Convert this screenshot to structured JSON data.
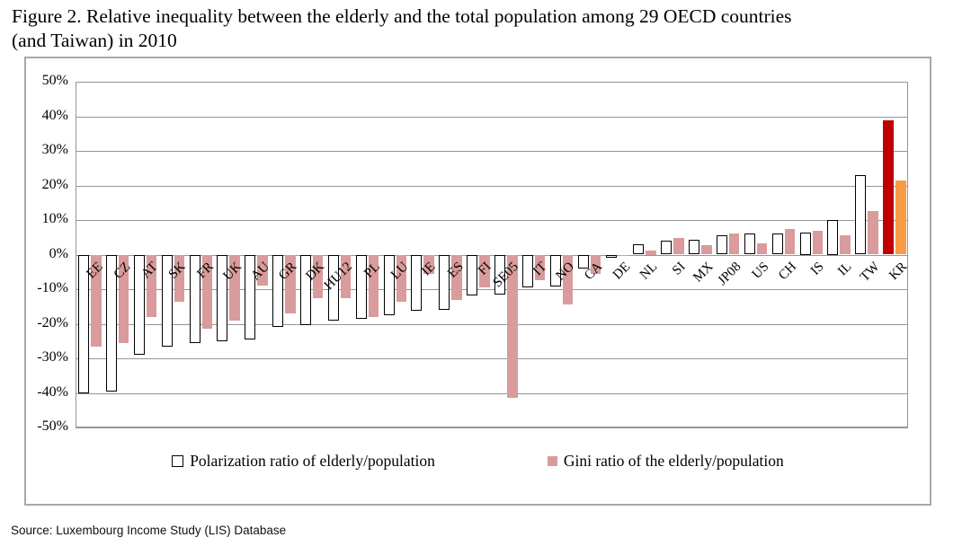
{
  "title_line1": "Figure 2. Relative inequality between the elderly and the total population among 29 OECD countries",
  "title_line2": "(and Taiwan) in 2010",
  "source": "Source: Luxembourg Income Study (LIS) Database",
  "chart_data": {
    "type": "bar",
    "categories": [
      "EE",
      "CZ",
      "AT",
      "SK",
      "FR",
      "UK",
      "AU",
      "GR",
      "DK",
      "HU12",
      "PL",
      "LU",
      "IE",
      "ES",
      "FI",
      "SE05",
      "IT",
      "NO",
      "CA",
      "DE",
      "NL",
      "SI",
      "MX",
      "JP08",
      "US",
      "CH",
      "IS",
      "IL",
      "TW",
      "KR"
    ],
    "series": [
      {
        "name": "Polarization ratio of elderly/population",
        "values": [
          -40,
          -39.5,
          -29,
          -26.5,
          -25.5,
          -25,
          -24.5,
          -21,
          -20.5,
          -19,
          -18.5,
          -17.5,
          -16.3,
          -16,
          -11.7,
          -11.5,
          -9.5,
          -9.3,
          -4,
          -1,
          3,
          4,
          4.4,
          5.7,
          6,
          6.2,
          6.5,
          10,
          23,
          38.8
        ]
      },
      {
        "name": "Gini ratio of the elderly/population",
        "values": [
          -26.5,
          -25.5,
          -18,
          -13.5,
          -21.5,
          -19,
          -9,
          -17,
          -12.5,
          -12.5,
          -18,
          -13.5,
          -5.5,
          -13,
          -9.5,
          -41.5,
          -7.5,
          -14.5,
          -5.5,
          -0.5,
          1.3,
          4.9,
          2.7,
          6,
          3.3,
          7.3,
          6.8,
          5.5,
          12.5,
          21.5
        ]
      }
    ],
    "ylim": [
      -50,
      50
    ],
    "ytick_labels": [
      "50%",
      "40%",
      "30%",
      "20%",
      "10%",
      "0%",
      "-10%",
      "-20%",
      "-30%",
      "-40%",
      "-50%"
    ],
    "grid": true,
    "legend_position": "bottom-inside",
    "highlight_category": "KR",
    "colors": {
      "polarization_fill": "#FFFFFF",
      "polarization_border": "#000000",
      "gini_fill": "#D99B9B",
      "kr_polarization_fill": "#C00000",
      "kr_gini_fill": "#F89B45",
      "gridline": "#969696"
    }
  }
}
